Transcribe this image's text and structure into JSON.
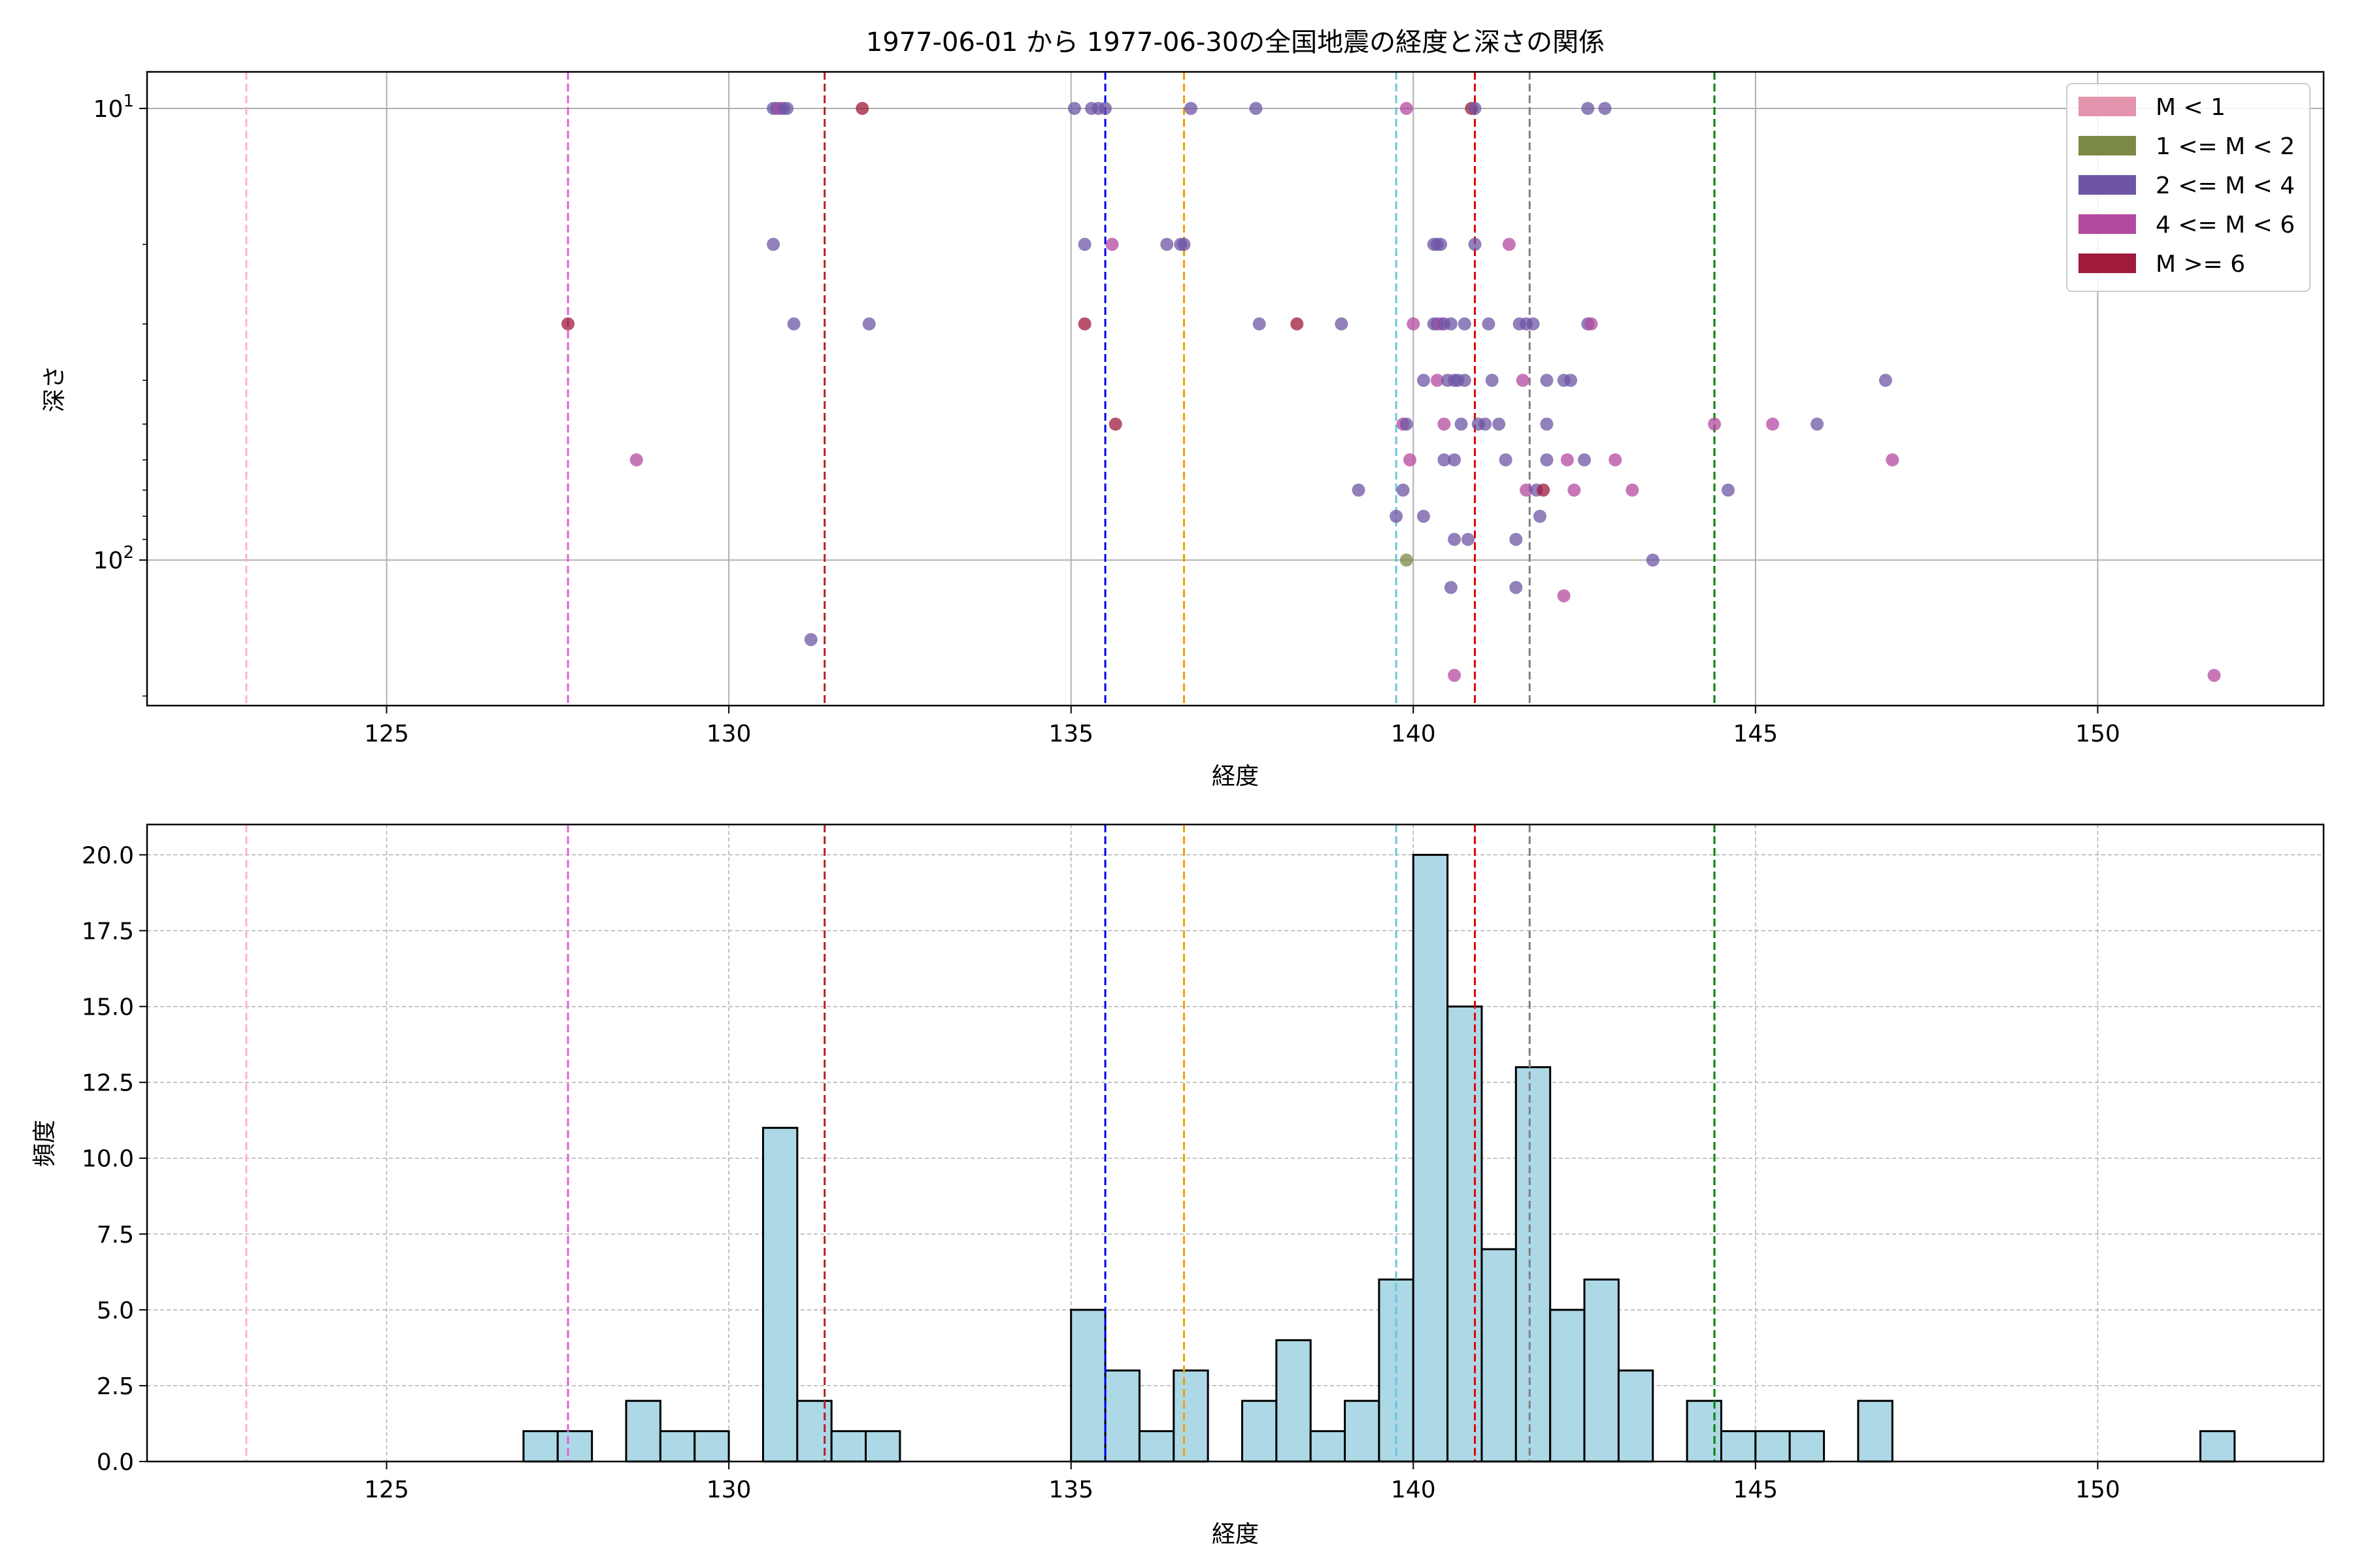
{
  "chart_data": [
    {
      "type": "scatter",
      "title": "1977-06-01 から 1977-06-30の全国地震の経度と深さの関係",
      "xlabel": "経度",
      "ylabel": "深さ",
      "xlim": [
        121.5,
        153.3
      ],
      "ylim": [
        210,
        8.3
      ],
      "yscale": "log-inverted",
      "xticks": [
        125,
        130,
        135,
        140,
        145,
        150
      ],
      "xtick_labels": [
        "125",
        "130",
        "135",
        "140",
        "145",
        "150"
      ],
      "yticks": [
        10,
        100
      ],
      "ytick_labels": [
        {
          "base": "10",
          "exp": "1"
        },
        {
          "base": "10",
          "exp": "2"
        }
      ],
      "grid": true,
      "legend_position": "top-right",
      "legend": [
        {
          "label": "M < 1",
          "color": "#e495ad"
        },
        {
          "label": "1 <= M < 2",
          "color": "#7a8a44"
        },
        {
          "label": "2 <= M < 4",
          "color": "#6e55a4"
        },
        {
          "label": "4 <= M < 6",
          "color": "#b44aa0"
        },
        {
          "label": "M >= 6",
          "color": "#a01a3c"
        }
      ],
      "vlines": [
        {
          "x": 122.95,
          "color": "#ffb6c1"
        },
        {
          "x": 127.65,
          "color": "#e060d0"
        },
        {
          "x": 131.4,
          "color": "#b22222"
        },
        {
          "x": 135.5,
          "color": "#0000ee"
        },
        {
          "x": 136.65,
          "color": "#f0a000"
        },
        {
          "x": 139.75,
          "color": "#66c8d8"
        },
        {
          "x": 140.9,
          "color": "#e00000"
        },
        {
          "x": 141.7,
          "color": "#808080"
        },
        {
          "x": 144.4,
          "color": "#008000"
        }
      ],
      "points": [
        {
          "x": 130.65,
          "y": 10,
          "c": 2
        },
        {
          "x": 130.7,
          "y": 10,
          "c": 2
        },
        {
          "x": 130.75,
          "y": 10,
          "c": 3
        },
        {
          "x": 130.8,
          "y": 10,
          "c": 2
        },
        {
          "x": 130.85,
          "y": 10,
          "c": 2
        },
        {
          "x": 131.95,
          "y": 10,
          "c": 4
        },
        {
          "x": 135.05,
          "y": 10,
          "c": 2
        },
        {
          "x": 135.3,
          "y": 10,
          "c": 2
        },
        {
          "x": 135.4,
          "y": 10,
          "c": 2
        },
        {
          "x": 135.5,
          "y": 10,
          "c": 2
        },
        {
          "x": 136.75,
          "y": 10,
          "c": 2
        },
        {
          "x": 137.7,
          "y": 10,
          "c": 2
        },
        {
          "x": 139.9,
          "y": 10,
          "c": 3
        },
        {
          "x": 140.85,
          "y": 10,
          "c": 4
        },
        {
          "x": 140.9,
          "y": 10,
          "c": 2
        },
        {
          "x": 142.55,
          "y": 10,
          "c": 2
        },
        {
          "x": 142.8,
          "y": 10,
          "c": 2
        },
        {
          "x": 130.65,
          "y": 20,
          "c": 2
        },
        {
          "x": 135.2,
          "y": 20,
          "c": 2
        },
        {
          "x": 135.6,
          "y": 20,
          "c": 3
        },
        {
          "x": 136.4,
          "y": 20,
          "c": 2
        },
        {
          "x": 136.6,
          "y": 20,
          "c": 2
        },
        {
          "x": 136.65,
          "y": 20,
          "c": 2
        },
        {
          "x": 140.3,
          "y": 20,
          "c": 2
        },
        {
          "x": 140.35,
          "y": 20,
          "c": 2
        },
        {
          "x": 140.4,
          "y": 20,
          "c": 2
        },
        {
          "x": 140.9,
          "y": 20,
          "c": 2
        },
        {
          "x": 141.4,
          "y": 20,
          "c": 3
        },
        {
          "x": 127.65,
          "y": 30,
          "c": 4
        },
        {
          "x": 130.95,
          "y": 30,
          "c": 2
        },
        {
          "x": 132.05,
          "y": 30,
          "c": 2
        },
        {
          "x": 135.2,
          "y": 30,
          "c": 4
        },
        {
          "x": 137.75,
          "y": 30,
          "c": 2
        },
        {
          "x": 138.3,
          "y": 30,
          "c": 4
        },
        {
          "x": 138.95,
          "y": 30,
          "c": 2
        },
        {
          "x": 140.0,
          "y": 30,
          "c": 3
        },
        {
          "x": 140.3,
          "y": 30,
          "c": 2
        },
        {
          "x": 140.35,
          "y": 30,
          "c": 2
        },
        {
          "x": 140.4,
          "y": 30,
          "c": 3
        },
        {
          "x": 140.45,
          "y": 30,
          "c": 2
        },
        {
          "x": 140.55,
          "y": 30,
          "c": 2
        },
        {
          "x": 140.75,
          "y": 30,
          "c": 2
        },
        {
          "x": 141.1,
          "y": 30,
          "c": 2
        },
        {
          "x": 141.55,
          "y": 30,
          "c": 2
        },
        {
          "x": 141.65,
          "y": 30,
          "c": 2
        },
        {
          "x": 141.75,
          "y": 30,
          "c": 2
        },
        {
          "x": 142.55,
          "y": 30,
          "c": 2
        },
        {
          "x": 142.6,
          "y": 30,
          "c": 3
        },
        {
          "x": 140.15,
          "y": 40,
          "c": 2
        },
        {
          "x": 140.35,
          "y": 40,
          "c": 3
        },
        {
          "x": 140.5,
          "y": 40,
          "c": 2
        },
        {
          "x": 140.6,
          "y": 40,
          "c": 2
        },
        {
          "x": 140.65,
          "y": 40,
          "c": 2
        },
        {
          "x": 140.75,
          "y": 40,
          "c": 2
        },
        {
          "x": 141.15,
          "y": 40,
          "c": 2
        },
        {
          "x": 141.6,
          "y": 40,
          "c": 3
        },
        {
          "x": 141.95,
          "y": 40,
          "c": 2
        },
        {
          "x": 142.2,
          "y": 40,
          "c": 2
        },
        {
          "x": 142.3,
          "y": 40,
          "c": 2
        },
        {
          "x": 146.9,
          "y": 40,
          "c": 2
        },
        {
          "x": 135.65,
          "y": 50,
          "c": 4
        },
        {
          "x": 139.85,
          "y": 50,
          "c": 3
        },
        {
          "x": 139.9,
          "y": 50,
          "c": 2
        },
        {
          "x": 140.45,
          "y": 50,
          "c": 3
        },
        {
          "x": 140.7,
          "y": 50,
          "c": 2
        },
        {
          "x": 140.95,
          "y": 50,
          "c": 2
        },
        {
          "x": 141.05,
          "y": 50,
          "c": 2
        },
        {
          "x": 141.25,
          "y": 50,
          "c": 2
        },
        {
          "x": 141.95,
          "y": 50,
          "c": 2
        },
        {
          "x": 144.4,
          "y": 50,
          "c": 3
        },
        {
          "x": 145.25,
          "y": 50,
          "c": 3
        },
        {
          "x": 145.9,
          "y": 50,
          "c": 2
        },
        {
          "x": 128.65,
          "y": 60,
          "c": 3
        },
        {
          "x": 139.95,
          "y": 60,
          "c": 3
        },
        {
          "x": 140.45,
          "y": 60,
          "c": 2
        },
        {
          "x": 140.6,
          "y": 60,
          "c": 2
        },
        {
          "x": 141.35,
          "y": 60,
          "c": 2
        },
        {
          "x": 141.95,
          "y": 60,
          "c": 2
        },
        {
          "x": 142.25,
          "y": 60,
          "c": 3
        },
        {
          "x": 142.5,
          "y": 60,
          "c": 2
        },
        {
          "x": 142.95,
          "y": 60,
          "c": 3
        },
        {
          "x": 147.0,
          "y": 60,
          "c": 3
        },
        {
          "x": 139.2,
          "y": 70,
          "c": 2
        },
        {
          "x": 139.85,
          "y": 70,
          "c": 2
        },
        {
          "x": 141.65,
          "y": 70,
          "c": 3
        },
        {
          "x": 141.8,
          "y": 70,
          "c": 2
        },
        {
          "x": 141.9,
          "y": 70,
          "c": 4
        },
        {
          "x": 142.35,
          "y": 70,
          "c": 3
        },
        {
          "x": 143.2,
          "y": 70,
          "c": 3
        },
        {
          "x": 144.6,
          "y": 70,
          "c": 2
        },
        {
          "x": 139.75,
          "y": 80,
          "c": 2
        },
        {
          "x": 140.15,
          "y": 80,
          "c": 2
        },
        {
          "x": 141.85,
          "y": 80,
          "c": 2
        },
        {
          "x": 140.6,
          "y": 90,
          "c": 2
        },
        {
          "x": 140.8,
          "y": 90,
          "c": 2
        },
        {
          "x": 141.5,
          "y": 90,
          "c": 2
        },
        {
          "x": 139.9,
          "y": 100,
          "c": 1
        },
        {
          "x": 143.5,
          "y": 100,
          "c": 2
        },
        {
          "x": 140.55,
          "y": 115,
          "c": 2
        },
        {
          "x": 141.5,
          "y": 115,
          "c": 2
        },
        {
          "x": 142.2,
          "y": 120,
          "c": 3
        },
        {
          "x": 131.2,
          "y": 150,
          "c": 2
        },
        {
          "x": 140.6,
          "y": 180,
          "c": 3
        },
        {
          "x": 151.7,
          "y": 180,
          "c": 3
        }
      ]
    },
    {
      "type": "histogram",
      "title": "",
      "xlabel": "経度",
      "ylabel": "頻度",
      "xlim": [
        121.5,
        153.3
      ],
      "ylim": [
        0,
        21
      ],
      "xticks": [
        125,
        130,
        135,
        140,
        145,
        150
      ],
      "xtick_labels": [
        "125",
        "130",
        "135",
        "140",
        "145",
        "150"
      ],
      "yticks": [
        0,
        2.5,
        5,
        7.5,
        10,
        12.5,
        15,
        17.5,
        20
      ],
      "ytick_labels": [
        "0.0",
        "2.5",
        "5.0",
        "7.5",
        "10.0",
        "12.5",
        "15.0",
        "17.5",
        "20.0"
      ],
      "grid": true,
      "bar_color": "#add8e6",
      "bin_width": 0.5,
      "bins": [
        {
          "x": 127.0,
          "count": 1
        },
        {
          "x": 127.5,
          "count": 1
        },
        {
          "x": 128.5,
          "count": 2
        },
        {
          "x": 129.0,
          "count": 1
        },
        {
          "x": 129.5,
          "count": 1
        },
        {
          "x": 130.5,
          "count": 11
        },
        {
          "x": 131.0,
          "count": 2
        },
        {
          "x": 131.5,
          "count": 1
        },
        {
          "x": 132.0,
          "count": 1
        },
        {
          "x": 135.0,
          "count": 5
        },
        {
          "x": 135.5,
          "count": 3
        },
        {
          "x": 136.0,
          "count": 1
        },
        {
          "x": 136.5,
          "count": 3
        },
        {
          "x": 137.5,
          "count": 2
        },
        {
          "x": 138.0,
          "count": 4
        },
        {
          "x": 138.5,
          "count": 1
        },
        {
          "x": 139.0,
          "count": 2
        },
        {
          "x": 139.5,
          "count": 6
        },
        {
          "x": 140.0,
          "count": 20
        },
        {
          "x": 140.5,
          "count": 15
        },
        {
          "x": 141.0,
          "count": 7
        },
        {
          "x": 141.5,
          "count": 13
        },
        {
          "x": 142.0,
          "count": 5
        },
        {
          "x": 142.5,
          "count": 6
        },
        {
          "x": 143.0,
          "count": 3
        },
        {
          "x": 144.0,
          "count": 2
        },
        {
          "x": 144.5,
          "count": 1
        },
        {
          "x": 145.0,
          "count": 1
        },
        {
          "x": 145.5,
          "count": 1
        },
        {
          "x": 146.5,
          "count": 2
        },
        {
          "x": 151.5,
          "count": 1
        }
      ],
      "vlines": [
        {
          "x": 122.95,
          "color": "#ffb6c1"
        },
        {
          "x": 127.65,
          "color": "#e060d0"
        },
        {
          "x": 131.4,
          "color": "#b22222"
        },
        {
          "x": 135.5,
          "color": "#0000ee"
        },
        {
          "x": 136.65,
          "color": "#f0a000"
        },
        {
          "x": 139.75,
          "color": "#66c8d8"
        },
        {
          "x": 140.9,
          "color": "#e00000"
        },
        {
          "x": 141.7,
          "color": "#808080"
        },
        {
          "x": 144.4,
          "color": "#008000"
        }
      ]
    }
  ]
}
